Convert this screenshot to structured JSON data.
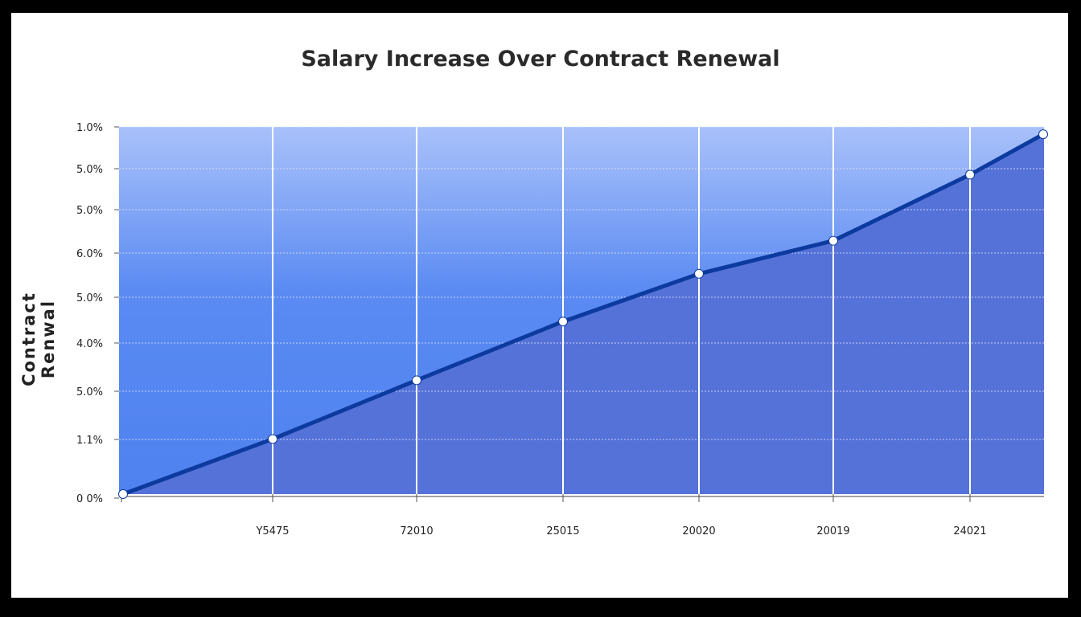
{
  "chart_data": {
    "type": "area",
    "title": "Salary Increase Over Contract Renewal",
    "xlabel": "",
    "ylabel": "Contract Renwal",
    "y_tick_labels": [
      "0 0%",
      "1.1%",
      "5.0%",
      "4.0%",
      "5.0%",
      "6.0%",
      "5.0%",
      "5.0%",
      "1.0%"
    ],
    "x_tick_labels": [
      "Y5475",
      "72010",
      "25015",
      "20020",
      "20019",
      "24021"
    ],
    "ylim": [
      0,
      10
    ],
    "grid": true,
    "legend": "none",
    "points": [
      {
        "x": 0,
        "y": 0
      },
      {
        "x": 1,
        "y": 1.5
      },
      {
        "x": 2,
        "y": 3.1
      },
      {
        "x": 3,
        "y": 4.7
      },
      {
        "x": 4,
        "y": 6.0
      },
      {
        "x": 5,
        "y": 6.9
      },
      {
        "x": 6,
        "y": 8.7
      },
      {
        "x": 7,
        "y": 9.8
      }
    ],
    "colors": {
      "line": "#0d3a9e",
      "fill_below": "#5472d8",
      "fill_above_top": "#a9c1fa",
      "fill_above_bottom": "#5a8af2",
      "marker": "#ffffff"
    }
  }
}
